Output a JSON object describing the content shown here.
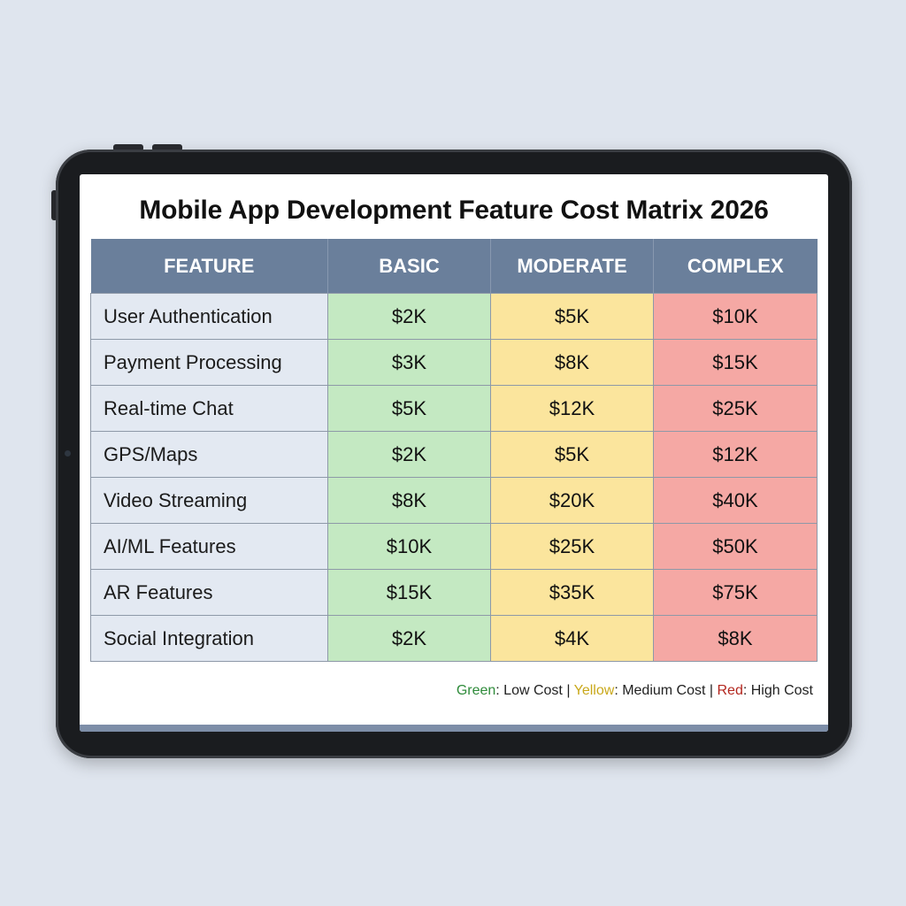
{
  "title": "Mobile App Development Feature Cost Matrix 2026",
  "table": {
    "headers": [
      "FEATURE",
      "BASIC",
      "MODERATE",
      "COMPLEX"
    ],
    "rows": [
      {
        "feature": "User Authentication",
        "basic": "$2K",
        "moderate": "$5K",
        "complex": "$10K"
      },
      {
        "feature": "Payment Processing",
        "basic": "$3K",
        "moderate": "$8K",
        "complex": "$15K"
      },
      {
        "feature": "Real-time Chat",
        "basic": "$5K",
        "moderate": "$12K",
        "complex": "$25K"
      },
      {
        "feature": "GPS/Maps",
        "basic": "$2K",
        "moderate": "$5K",
        "complex": "$12K"
      },
      {
        "feature": "Video Streaming",
        "basic": "$8K",
        "moderate": "$20K",
        "complex": "$40K"
      },
      {
        "feature": "AI/ML Features",
        "basic": "$10K",
        "moderate": "$25K",
        "complex": "$50K"
      },
      {
        "feature": "AR Features",
        "basic": "$15K",
        "moderate": "$35K",
        "complex": "$75K"
      },
      {
        "feature": "Social Integration",
        "basic": "$2K",
        "moderate": "$4K",
        "complex": "$8K"
      }
    ]
  },
  "legend": {
    "green_word": "Green",
    "green_text": ": Low Cost",
    "sep1": " | ",
    "yellow_word": "Yellow",
    "yellow_text": ": Medium Cost",
    "sep2": " | ",
    "red_word": "Red",
    "red_text": ": High Cost"
  },
  "colors": {
    "header_bg": "#6a7f9b",
    "feature_bg": "#e3e9f2",
    "basic_bg": "#c4e9c2",
    "moderate_bg": "#fbe59d",
    "complex_bg": "#f5a8a4"
  }
}
